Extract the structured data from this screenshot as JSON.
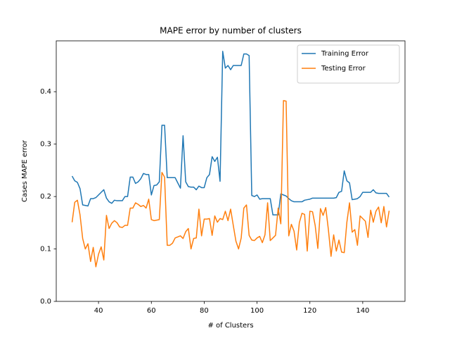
{
  "chart_data": {
    "type": "line",
    "title": "MAPE error by number of clusters",
    "xlabel": "# of Clusters",
    "ylabel": "Cases MAPE error",
    "x": [
      30,
      31,
      32,
      33,
      34,
      35,
      36,
      37,
      38,
      39,
      40,
      41,
      42,
      43,
      44,
      45,
      46,
      47,
      48,
      49,
      50,
      51,
      52,
      53,
      54,
      55,
      56,
      57,
      58,
      59,
      60,
      61,
      62,
      63,
      64,
      65,
      66,
      67,
      68,
      69,
      70,
      71,
      72,
      73,
      74,
      75,
      76,
      77,
      78,
      79,
      80,
      81,
      82,
      83,
      84,
      85,
      86,
      87,
      88,
      89,
      90,
      91,
      92,
      93,
      94,
      95,
      96,
      97,
      98,
      99,
      100,
      101,
      102,
      103,
      104,
      105,
      106,
      107,
      108,
      109,
      110,
      111,
      112,
      113,
      114,
      115,
      116,
      117,
      118,
      119,
      120,
      121,
      122,
      123,
      124,
      125,
      126,
      127,
      128,
      129,
      130,
      131,
      132,
      133,
      134,
      135,
      136,
      137,
      138,
      139,
      140,
      141,
      142,
      143,
      144,
      145,
      146,
      147,
      148,
      149,
      150
    ],
    "series": [
      {
        "name": "Training Error",
        "color": "#1f77b4",
        "values": [
          0.239,
          0.23,
          0.227,
          0.215,
          0.184,
          0.183,
          0.182,
          0.196,
          0.196,
          0.198,
          0.203,
          0.208,
          0.213,
          0.197,
          0.19,
          0.187,
          0.193,
          0.192,
          0.192,
          0.192,
          0.2,
          0.2,
          0.237,
          0.237,
          0.225,
          0.228,
          0.234,
          0.244,
          0.242,
          0.242,
          0.203,
          0.221,
          0.222,
          0.228,
          0.336,
          0.336,
          0.236,
          0.236,
          0.236,
          0.236,
          0.226,
          0.216,
          0.316,
          0.228,
          0.219,
          0.218,
          0.218,
          0.213,
          0.22,
          0.217,
          0.217,
          0.236,
          0.242,
          0.276,
          0.267,
          0.275,
          0.229,
          0.477,
          0.445,
          0.45,
          0.442,
          0.45,
          0.45,
          0.45,
          0.45,
          0.472,
          0.472,
          0.469,
          0.202,
          0.2,
          0.203,
          0.195,
          0.196,
          0.196,
          0.196,
          0.196,
          0.165,
          0.165,
          0.165,
          0.205,
          0.203,
          0.201,
          0.196,
          0.192,
          0.19,
          0.19,
          0.19,
          0.19,
          0.193,
          0.194,
          0.195,
          0.197,
          0.197,
          0.197,
          0.197,
          0.197,
          0.197,
          0.197,
          0.197,
          0.197,
          0.198,
          0.208,
          0.21,
          0.249,
          0.23,
          0.226,
          0.194,
          0.195,
          0.196,
          0.2,
          0.208,
          0.208,
          0.208,
          0.208,
          0.213,
          0.207,
          0.206,
          0.206,
          0.206,
          0.206,
          0.199
        ]
      },
      {
        "name": "Testing Error",
        "color": "#ff7f0e",
        "values": [
          0.151,
          0.189,
          0.193,
          0.165,
          0.12,
          0.1,
          0.11,
          0.076,
          0.103,
          0.066,
          0.09,
          0.104,
          0.079,
          0.164,
          0.139,
          0.149,
          0.154,
          0.15,
          0.142,
          0.141,
          0.145,
          0.145,
          0.178,
          0.178,
          0.188,
          0.185,
          0.181,
          0.183,
          0.178,
          0.195,
          0.156,
          0.154,
          0.155,
          0.156,
          0.246,
          0.237,
          0.107,
          0.107,
          0.111,
          0.121,
          0.123,
          0.125,
          0.12,
          0.133,
          0.139,
          0.1,
          0.12,
          0.121,
          0.176,
          0.125,
          0.157,
          0.157,
          0.158,
          0.126,
          0.163,
          0.151,
          0.158,
          0.156,
          0.172,
          0.154,
          0.176,
          0.145,
          0.115,
          0.1,
          0.121,
          0.178,
          0.184,
          0.126,
          0.117,
          0.116,
          0.121,
          0.124,
          0.112,
          0.127,
          0.188,
          0.116,
          0.121,
          0.126,
          0.178,
          0.148,
          0.383,
          0.382,
          0.125,
          0.147,
          0.134,
          0.098,
          0.15,
          0.168,
          0.166,
          0.096,
          0.172,
          0.171,
          0.145,
          0.101,
          0.177,
          0.164,
          0.179,
          0.137,
          0.086,
          0.127,
          0.096,
          0.117,
          0.094,
          0.093,
          0.151,
          0.188,
          0.132,
          0.137,
          0.107,
          0.163,
          0.158,
          0.153,
          0.122,
          0.174,
          0.151,
          0.172,
          0.18,
          0.15,
          0.181,
          0.142,
          0.173
        ]
      }
    ],
    "xlim": [
      24,
      156
    ],
    "ylim": [
      0,
      0.497
    ],
    "xticks": [
      40,
      60,
      80,
      100,
      120,
      140
    ],
    "yticks": [
      {
        "value": 0,
        "label": "0.0"
      },
      0.1,
      0.2,
      0.3,
      0.4
    ],
    "legend": "upper right",
    "grid": false
  }
}
